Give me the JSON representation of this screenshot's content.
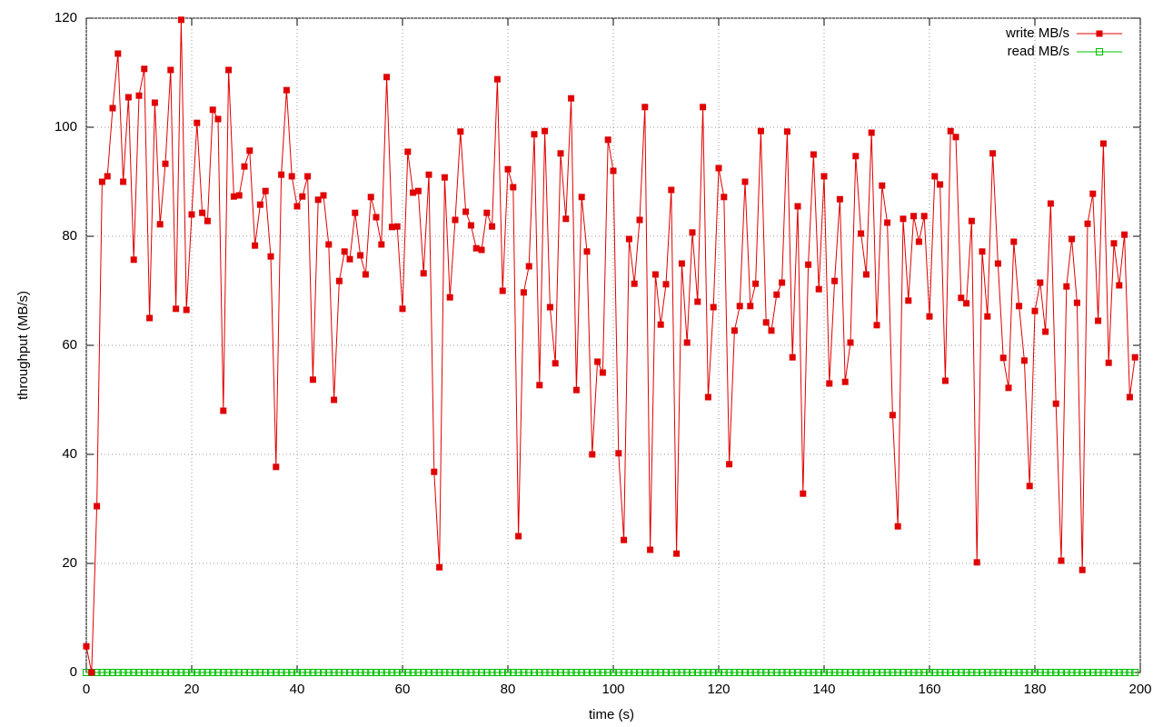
{
  "chart_data": {
    "type": "line",
    "xlabel": "time (s)",
    "ylabel": "throughput (MB/s)",
    "x": [
      0,
      1,
      2,
      3,
      4,
      5,
      6,
      7,
      8,
      9,
      10,
      11,
      12,
      13,
      14,
      15,
      16,
      17,
      18,
      19,
      20,
      21,
      22,
      23,
      24,
      25,
      26,
      27,
      28,
      29,
      30,
      31,
      32,
      33,
      34,
      35,
      36,
      37,
      38,
      39,
      40,
      41,
      42,
      43,
      44,
      45,
      46,
      47,
      48,
      49,
      50,
      51,
      52,
      53,
      54,
      55,
      56,
      57,
      58,
      59,
      60,
      61,
      62,
      63,
      64,
      65,
      66,
      67,
      68,
      69,
      70,
      71,
      72,
      73,
      74,
      75,
      76,
      77,
      78,
      79,
      80,
      81,
      82,
      83,
      84,
      85,
      86,
      87,
      88,
      89,
      90,
      91,
      92,
      93,
      94,
      95,
      96,
      97,
      98,
      99,
      100,
      101,
      102,
      103,
      104,
      105,
      106,
      107,
      108,
      109,
      110,
      111,
      112,
      113,
      114,
      115,
      116,
      117,
      118,
      119,
      120,
      121,
      122,
      123,
      124,
      125,
      126,
      127,
      128,
      129,
      130,
      131,
      132,
      133,
      134,
      135,
      136,
      137,
      138,
      139,
      140,
      141,
      142,
      143,
      144,
      145,
      146,
      147,
      148,
      149,
      150,
      151,
      152,
      153,
      154,
      155,
      156,
      157,
      158,
      159,
      160,
      161,
      162,
      163,
      164,
      165,
      166,
      167,
      168,
      169,
      170,
      171,
      172,
      173,
      174,
      175,
      176,
      177,
      178,
      179,
      180,
      181,
      182,
      183,
      184,
      185,
      186,
      187,
      188,
      189,
      190,
      191,
      192,
      193,
      194,
      195,
      196,
      197,
      198,
      199
    ],
    "series": [
      {
        "name": "write MB/s",
        "color": "#e00000",
        "marker": "filled-square",
        "values": [
          4.8,
          0,
          30.5,
          90,
          91,
          103.5,
          113.5,
          90,
          105.5,
          75.7,
          105.8,
          110.7,
          65,
          104.5,
          82.2,
          93.3,
          110.5,
          66.7,
          119.7,
          66.5,
          84,
          100.8,
          84.3,
          82.8,
          103.2,
          101.5,
          48,
          110.5,
          87.3,
          87.5,
          92.8,
          95.7,
          78.3,
          85.8,
          88.3,
          76.3,
          37.7,
          91.3,
          106.8,
          91,
          85.5,
          87.3,
          91,
          53.7,
          86.7,
          87.5,
          78.5,
          50,
          71.8,
          77.2,
          75.8,
          84.3,
          76.5,
          73,
          87.2,
          83.5,
          78.5,
          109.2,
          81.7,
          81.8,
          66.7,
          95.5,
          88,
          88.3,
          73.2,
          91.3,
          36.8,
          19.3,
          90.8,
          68.8,
          83,
          99.2,
          84.5,
          82,
          77.8,
          77.5,
          84.3,
          81.8,
          108.8,
          70,
          92.3,
          89,
          25,
          69.7,
          74.5,
          98.7,
          52.7,
          99.3,
          67,
          56.7,
          95.2,
          83.2,
          105.3,
          51.8,
          87.2,
          77.2,
          40,
          57,
          55,
          97.7,
          92,
          40.2,
          24.3,
          79.5,
          71.3,
          83,
          103.7,
          22.5,
          73,
          63.8,
          71.2,
          88.5,
          21.8,
          75,
          60.5,
          80.7,
          68,
          103.7,
          50.5,
          67,
          92.5,
          87.2,
          38.2,
          62.7,
          67.2,
          90,
          67.2,
          71.3,
          99.3,
          64.2,
          62.7,
          69.3,
          71.5,
          99.2,
          57.8,
          85.5,
          32.8,
          74.8,
          95,
          70.3,
          91,
          53,
          71.8,
          86.8,
          53.3,
          60.5,
          94.7,
          80.5,
          73,
          99,
          63.7,
          89.3,
          82.5,
          47.2,
          26.8,
          83.2,
          68.2,
          83.7,
          79,
          83.7,
          65.3,
          91,
          89.5,
          53.5,
          99.3,
          98.2,
          68.7,
          67.7,
          82.8,
          20.2,
          77.2,
          65.3,
          95.2,
          75,
          57.7,
          52.2,
          79,
          67.2,
          57.2,
          34.2,
          66.3,
          71.5,
          62.5,
          86,
          49.3,
          20.5,
          70.8,
          79.5,
          67.8,
          18.8,
          82.3,
          87.8,
          64.5,
          97,
          56.8,
          78.7,
          71,
          80.3,
          50.5,
          57.8
        ]
      },
      {
        "name": "read MB/s",
        "color": "#00c000",
        "marker": "open-square",
        "values": [
          0,
          0,
          0,
          0,
          0,
          0,
          0,
          0,
          0,
          0,
          0,
          0,
          0,
          0,
          0,
          0,
          0,
          0,
          0,
          0,
          0,
          0,
          0,
          0,
          0,
          0,
          0,
          0,
          0,
          0,
          0,
          0,
          0,
          0,
          0,
          0,
          0,
          0,
          0,
          0,
          0,
          0,
          0,
          0,
          0,
          0,
          0,
          0,
          0,
          0,
          0,
          0,
          0,
          0,
          0,
          0,
          0,
          0,
          0,
          0,
          0,
          0,
          0,
          0,
          0,
          0,
          0,
          0,
          0,
          0,
          0,
          0,
          0,
          0,
          0,
          0,
          0,
          0,
          0,
          0,
          0,
          0,
          0,
          0,
          0,
          0,
          0,
          0,
          0,
          0,
          0,
          0,
          0,
          0,
          0,
          0,
          0,
          0,
          0,
          0,
          0,
          0,
          0,
          0,
          0,
          0,
          0,
          0,
          0,
          0,
          0,
          0,
          0,
          0,
          0,
          0,
          0,
          0,
          0,
          0,
          0,
          0,
          0,
          0,
          0,
          0,
          0,
          0,
          0,
          0,
          0,
          0,
          0,
          0,
          0,
          0,
          0,
          0,
          0,
          0,
          0,
          0,
          0,
          0,
          0,
          0,
          0,
          0,
          0,
          0,
          0,
          0,
          0,
          0,
          0,
          0,
          0,
          0,
          0,
          0,
          0,
          0,
          0,
          0,
          0,
          0,
          0,
          0,
          0,
          0,
          0,
          0,
          0,
          0,
          0,
          0,
          0,
          0,
          0,
          0,
          0,
          0,
          0,
          0,
          0,
          0,
          0,
          0,
          0,
          0,
          0,
          0,
          0,
          0,
          0,
          0,
          0,
          0,
          0,
          0
        ]
      }
    ],
    "xlim": [
      0,
      200
    ],
    "xticks": [
      0,
      20,
      40,
      60,
      80,
      100,
      120,
      140,
      160,
      180,
      200
    ],
    "ylim": [
      0,
      120
    ],
    "yticks": [
      0,
      20,
      40,
      60,
      80,
      100,
      120
    ],
    "grid": true,
    "legend": "top-right"
  }
}
